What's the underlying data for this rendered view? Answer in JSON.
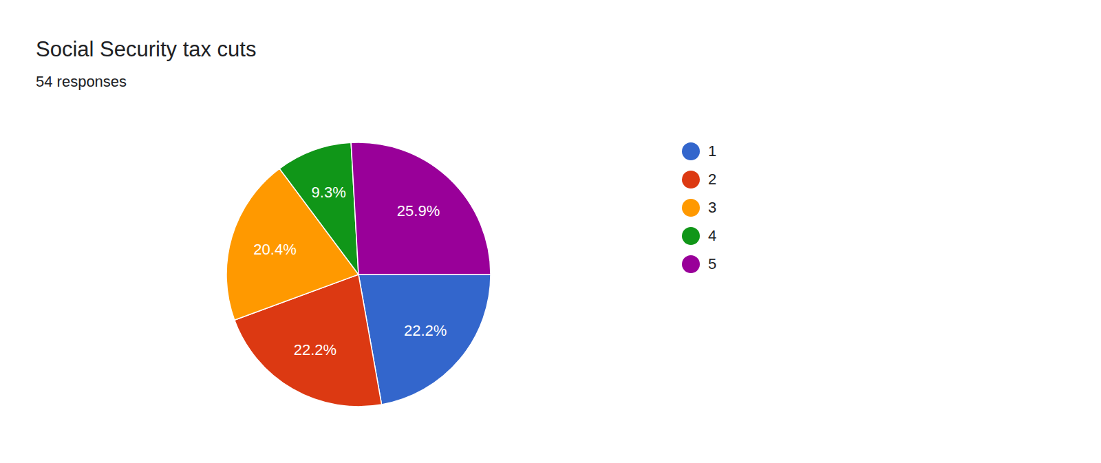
{
  "chart_data": {
    "type": "pie",
    "title": "Social Security tax cuts",
    "subtitle": "54 responses",
    "categories": [
      "1",
      "2",
      "3",
      "4",
      "5"
    ],
    "values": [
      22.2,
      22.2,
      20.4,
      9.3,
      25.9
    ],
    "value_labels": [
      "22.2%",
      "22.2%",
      "20.4%",
      "9.3%",
      "25.9%"
    ],
    "colors": [
      "#3366cc",
      "#dc3912",
      "#ff9900",
      "#109618",
      "#990099"
    ],
    "data_labels": true,
    "legend": "right"
  }
}
